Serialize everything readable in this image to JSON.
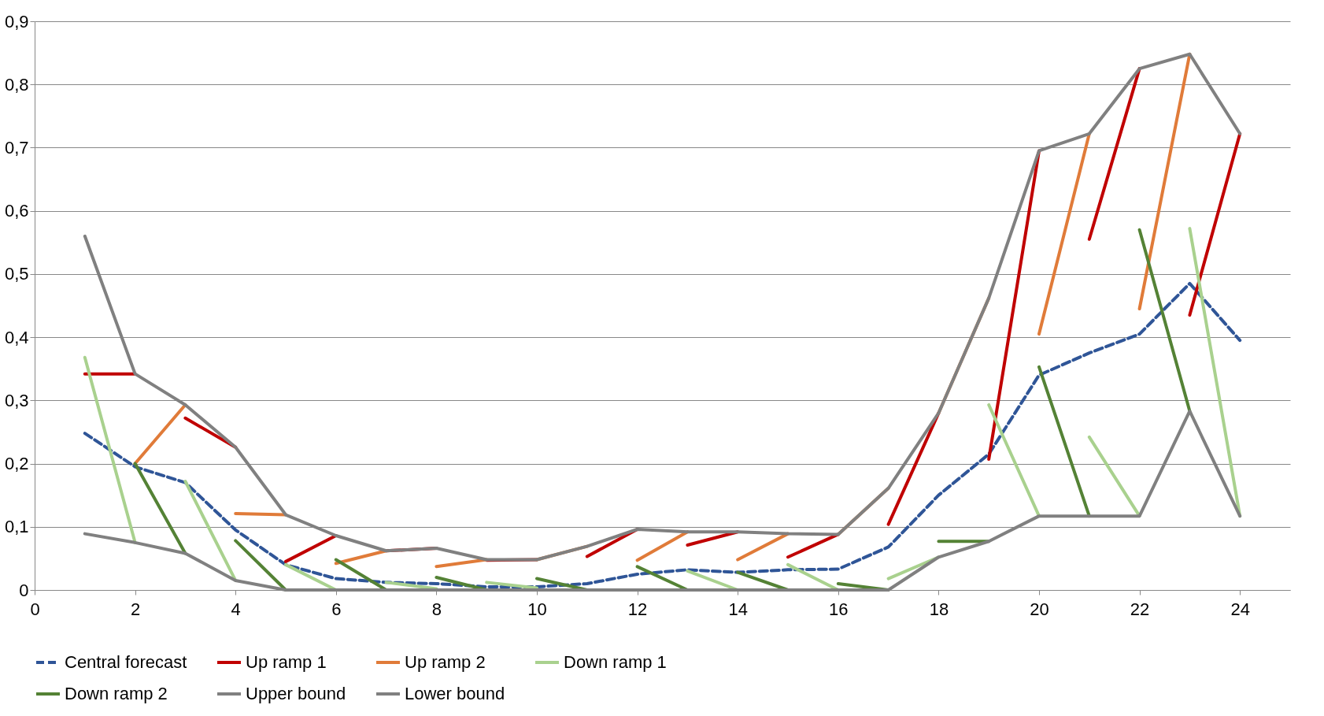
{
  "chart_data": {
    "type": "line",
    "xlim": [
      0,
      25
    ],
    "xticks": [
      0,
      2,
      4,
      6,
      8,
      10,
      12,
      14,
      16,
      18,
      20,
      22,
      24
    ],
    "ylim": [
      0,
      0.9
    ],
    "yticks": [
      {
        "value": 0,
        "label": "0"
      },
      {
        "value": 0.1,
        "label": "0,1"
      },
      {
        "value": 0.2,
        "label": "0,2"
      },
      {
        "value": 0.3,
        "label": "0,3"
      },
      {
        "value": 0.4,
        "label": "0,4"
      },
      {
        "value": 0.5,
        "label": "0,5"
      },
      {
        "value": 0.6,
        "label": "0,6"
      },
      {
        "value": 0.7,
        "label": "0,7"
      },
      {
        "value": 0.8,
        "label": "0,8"
      },
      {
        "value": 0.9,
        "label": "0,9"
      }
    ],
    "grid": "y",
    "legend": "bottom",
    "marker": "none",
    "x": [
      1,
      2,
      3,
      4,
      5,
      6,
      7,
      8,
      9,
      10,
      11,
      12,
      13,
      14,
      15,
      16,
      17,
      18,
      19,
      20,
      21,
      22,
      23,
      24
    ],
    "series": [
      {
        "name": "Central forecast",
        "color": "#2f5597",
        "line_style": "dashed",
        "values": [
          0.248,
          0.195,
          0.17,
          0.095,
          0.04,
          0.018,
          0.012,
          0.01,
          0.005,
          0.005,
          0.01,
          0.025,
          0.032,
          0.028,
          0.032,
          0.033,
          0.068,
          0.15,
          0.215,
          0.34,
          0.375,
          0.405,
          0.485,
          0.395
        ]
      },
      {
        "name": "Up ramp 1",
        "color": "#c00000",
        "line_style": "solid",
        "x": [
          1,
          2,
          null,
          3,
          4,
          null,
          5,
          6,
          null,
          7,
          8,
          null,
          9,
          10,
          null,
          11,
          12,
          null,
          13,
          14,
          null,
          15,
          16,
          null,
          17,
          18,
          null,
          19,
          20,
          null,
          21,
          22,
          null,
          23,
          24
        ],
        "values": [
          0.342,
          0.342,
          null,
          0.272,
          0.226,
          null,
          0.045,
          0.086,
          null,
          0.062,
          0.066,
          null,
          0.047,
          0.048,
          null,
          0.053,
          0.096,
          null,
          0.071,
          0.092,
          null,
          0.052,
          0.088,
          null,
          0.104,
          0.28,
          null,
          0.207,
          0.695,
          null,
          0.555,
          0.825,
          null,
          0.435,
          0.722
        ]
      },
      {
        "name": "Up ramp 2",
        "color": "#e07b39",
        "line_style": "solid",
        "x": [
          2,
          3,
          null,
          4,
          5,
          null,
          6,
          7,
          null,
          8,
          9,
          null,
          10,
          11,
          null,
          12,
          13,
          null,
          14,
          15,
          null,
          16,
          17,
          null,
          18,
          19,
          null,
          20,
          21,
          null,
          22,
          23
        ],
        "values": [
          0.2,
          0.293,
          null,
          0.121,
          0.119,
          null,
          0.042,
          0.062,
          null,
          0.037,
          0.048,
          null,
          0.048,
          0.069,
          null,
          0.047,
          0.092,
          null,
          0.048,
          0.089,
          null,
          0.088,
          0.161,
          null,
          0.28,
          0.462,
          null,
          0.405,
          0.722,
          null,
          0.445,
          0.848
        ]
      },
      {
        "name": "Down ramp 1",
        "color": "#a9d18e",
        "line_style": "solid",
        "x": [
          1,
          2,
          null,
          3,
          4,
          null,
          5,
          6,
          null,
          7,
          8,
          null,
          9,
          10,
          null,
          11,
          12,
          null,
          13,
          14,
          null,
          15,
          16,
          null,
          17,
          18,
          null,
          19,
          20,
          null,
          21,
          22,
          null,
          23,
          24
        ],
        "values": [
          0.368,
          0.075,
          null,
          0.172,
          0.015,
          null,
          0.04,
          0,
          null,
          0.012,
          0.002,
          null,
          0.012,
          0.003,
          null,
          0,
          0,
          null,
          0.03,
          0,
          null,
          0.04,
          0,
          null,
          0.018,
          0.052,
          null,
          0.293,
          0.117,
          null,
          0.242,
          0.117,
          null,
          0.572,
          0.117
        ]
      },
      {
        "name": "Down ramp 2",
        "color": "#548235",
        "line_style": "solid",
        "x": [
          2,
          3,
          null,
          4,
          5,
          null,
          6,
          7,
          null,
          8,
          9,
          null,
          10,
          11,
          null,
          12,
          13,
          null,
          14,
          15,
          null,
          16,
          17,
          null,
          18,
          19,
          null,
          20,
          21,
          null,
          22,
          23
        ],
        "values": [
          0.2,
          0.058,
          null,
          0.078,
          0,
          null,
          0.048,
          0,
          null,
          0.02,
          0,
          null,
          0.018,
          0,
          null,
          0.037,
          0,
          null,
          0.028,
          0,
          null,
          0.01,
          0,
          null,
          0.077,
          0.077,
          null,
          0.353,
          0.117,
          null,
          0.57,
          0.283
        ]
      },
      {
        "name": "Upper bound",
        "color": "#808080",
        "line_style": "solid",
        "values": [
          0.56,
          0.342,
          0.293,
          0.226,
          0.119,
          0.086,
          0.062,
          0.066,
          0.048,
          0.048,
          0.069,
          0.096,
          0.092,
          0.092,
          0.089,
          0.088,
          0.161,
          0.28,
          0.462,
          0.695,
          0.722,
          0.825,
          0.848,
          0.722
        ]
      },
      {
        "name": "Lower bound",
        "color": "#808080",
        "line_style": "solid",
        "values": [
          0.089,
          0.075,
          0.058,
          0.015,
          0,
          0,
          0,
          0,
          0,
          0,
          0,
          0,
          0,
          0,
          0,
          0,
          0,
          0.052,
          0.077,
          0.117,
          0.117,
          0.117,
          0.283,
          0.117
        ]
      }
    ]
  }
}
